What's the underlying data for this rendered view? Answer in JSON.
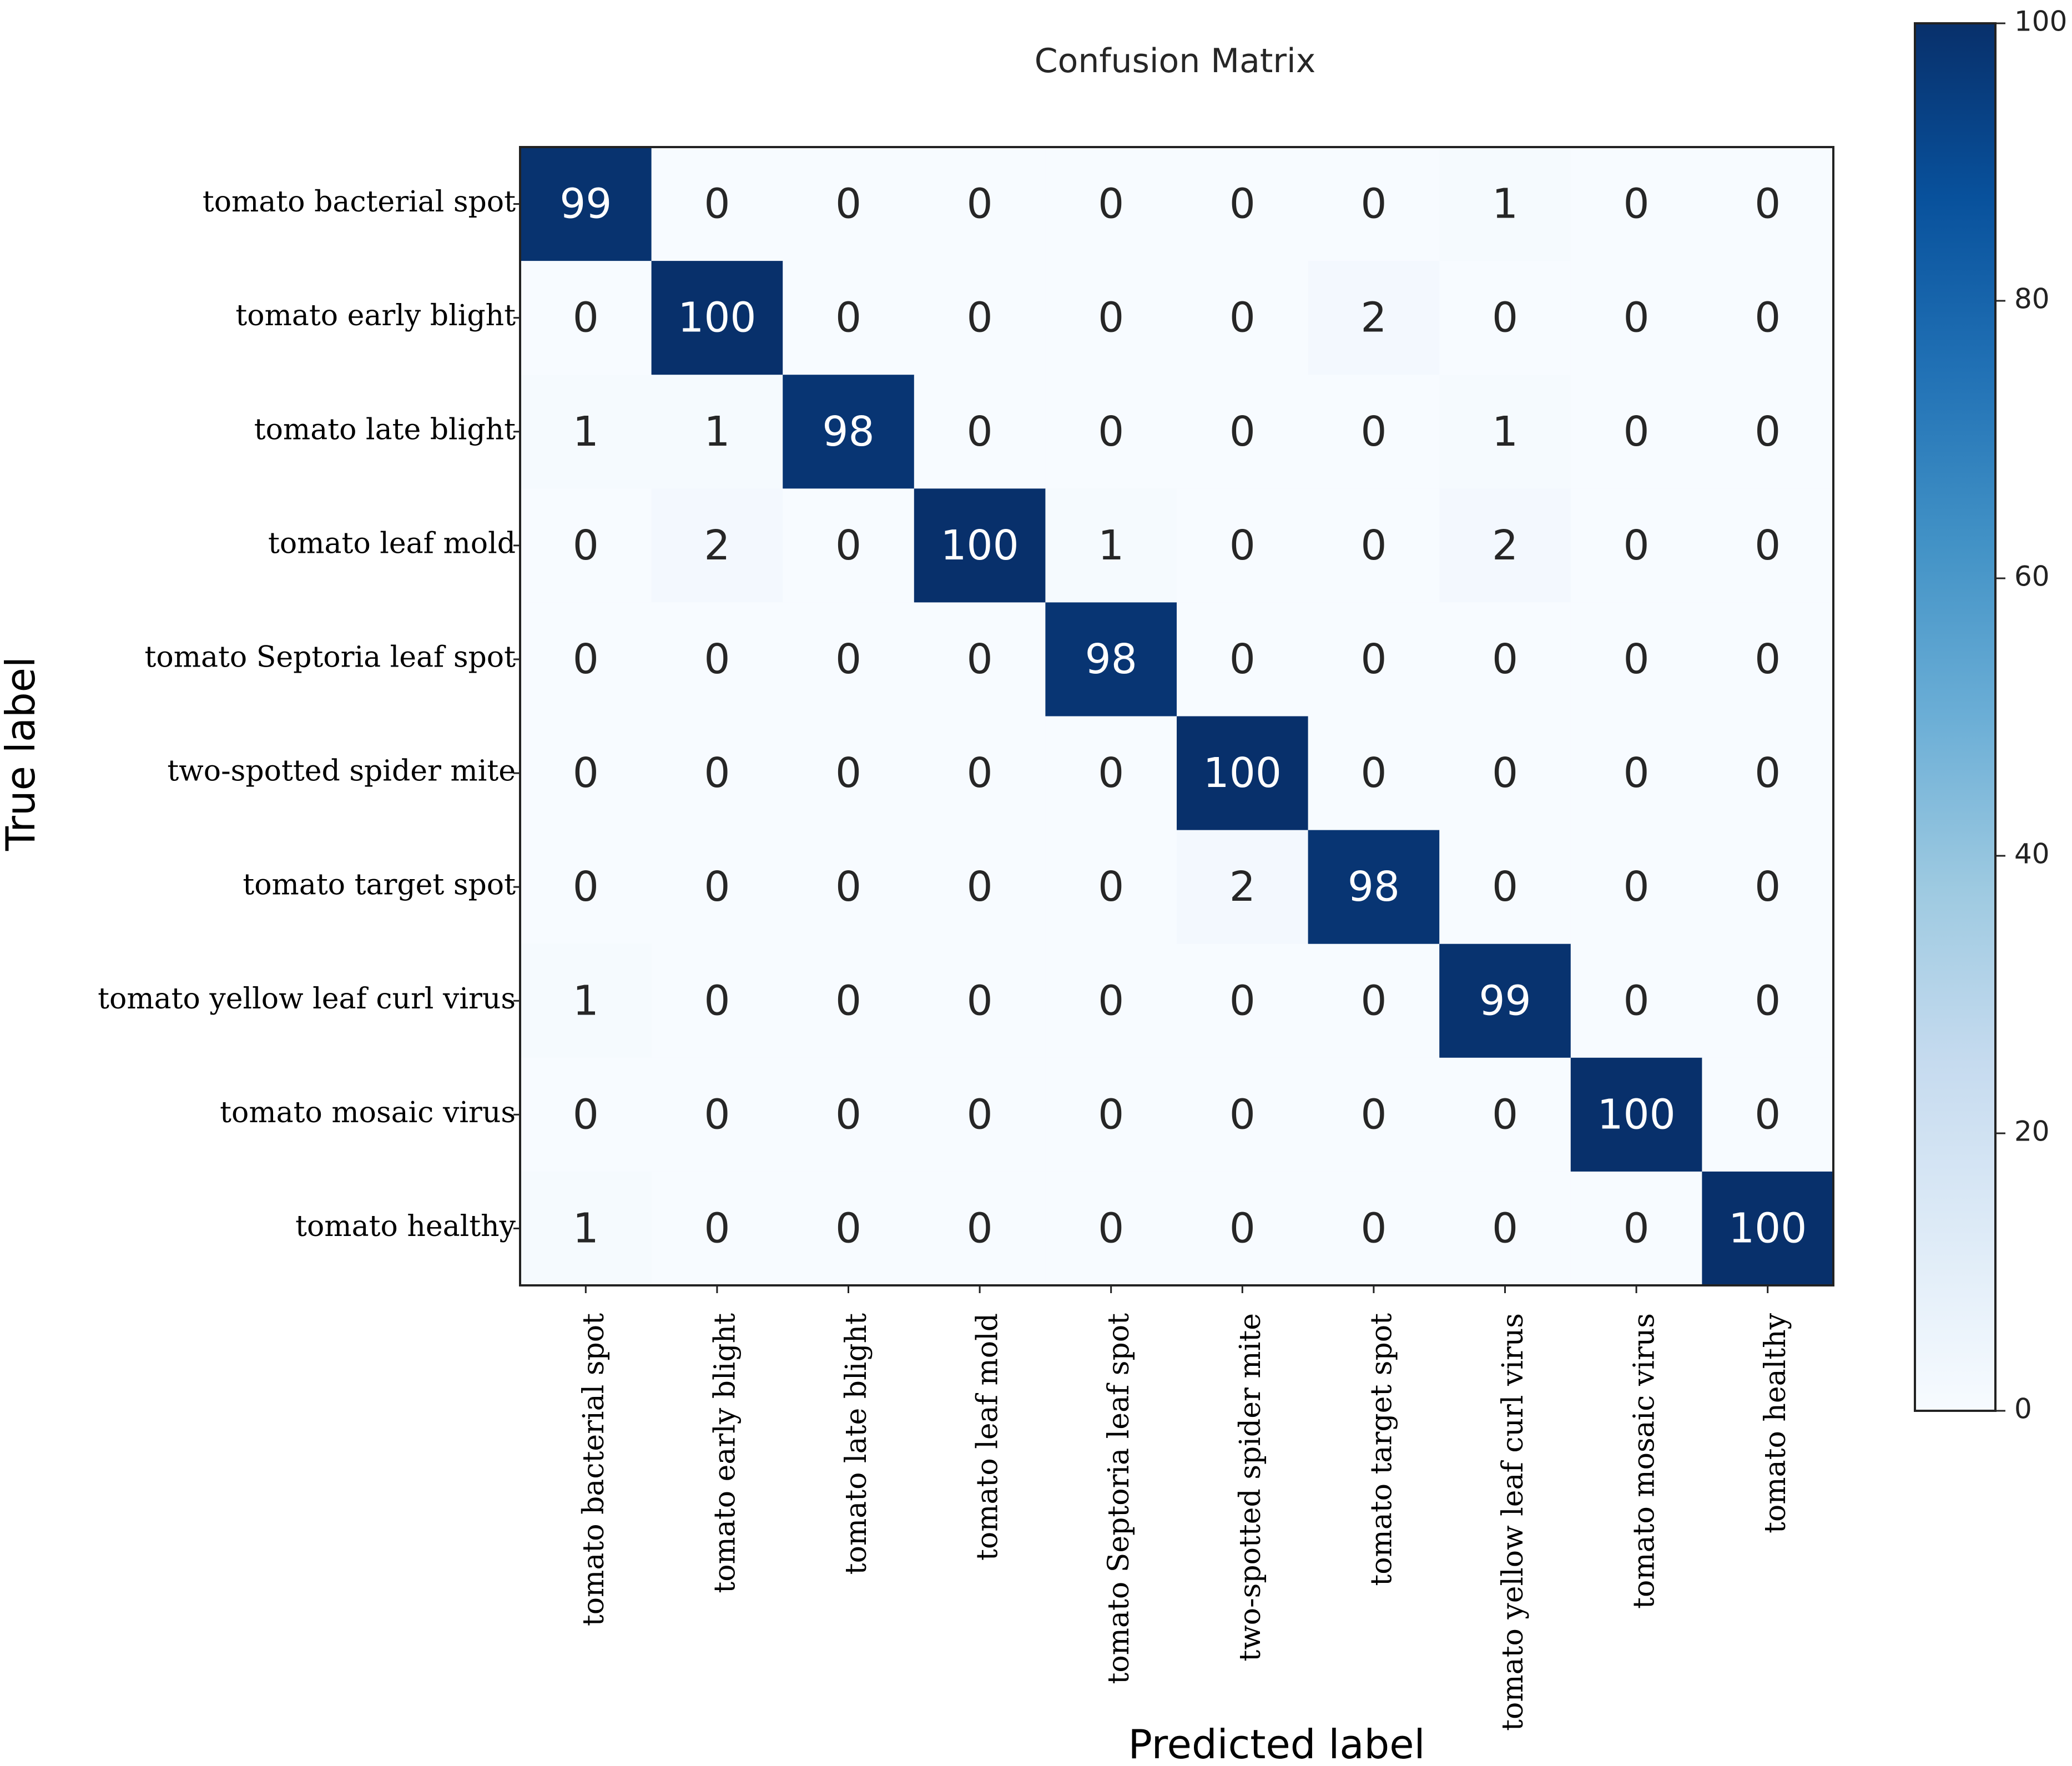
{
  "chart_data": {
    "type": "heatmap",
    "title": "Confusion Matrix",
    "xlabel": "Predicted label",
    "ylabel": "True label",
    "row_labels": [
      "tomato bacterial spot",
      "tomato early blight",
      "tomato late blight",
      "tomato leaf mold",
      "tomato Septoria leaf spot",
      "two-spotted spider mite",
      "tomato target spot",
      "tomato yellow leaf curl virus",
      "tomato mosaic virus",
      "tomato healthy"
    ],
    "col_labels": [
      "tomato bacterial spot",
      "tomato early blight",
      "tomato late blight",
      "tomato leaf mold",
      "tomato Septoria leaf spot",
      "two-spotted spider mite",
      "tomato target spot",
      "tomato yellow leaf curl virus",
      "tomato mosaic virus",
      "tomato healthy"
    ],
    "matrix": [
      [
        99,
        0,
        0,
        0,
        0,
        0,
        0,
        1,
        0,
        0
      ],
      [
        0,
        100,
        0,
        0,
        0,
        0,
        2,
        0,
        0,
        0
      ],
      [
        1,
        1,
        98,
        0,
        0,
        0,
        0,
        1,
        0,
        0
      ],
      [
        0,
        2,
        0,
        100,
        1,
        0,
        0,
        2,
        0,
        0
      ],
      [
        0,
        0,
        0,
        0,
        98,
        0,
        0,
        0,
        0,
        0
      ],
      [
        0,
        0,
        0,
        0,
        0,
        100,
        0,
        0,
        0,
        0
      ],
      [
        0,
        0,
        0,
        0,
        0,
        2,
        98,
        0,
        0,
        0
      ],
      [
        1,
        0,
        0,
        0,
        0,
        0,
        0,
        99,
        0,
        0
      ],
      [
        0,
        0,
        0,
        0,
        0,
        0,
        0,
        0,
        100,
        0
      ],
      [
        1,
        0,
        0,
        0,
        0,
        0,
        0,
        0,
        0,
        100
      ]
    ],
    "colorbar": {
      "min": 0,
      "max": 100,
      "ticks": [
        0,
        20,
        40,
        60,
        80,
        100
      ],
      "colormap": "Blues",
      "colors": [
        "#f7fbff",
        "#deebf7",
        "#c6dbef",
        "#9ecae1",
        "#6baed6",
        "#4292c6",
        "#2171b5",
        "#08519c",
        "#08306b"
      ]
    },
    "text_color_dark": "#262626",
    "text_color_light": "#ffffff",
    "grid": false
  }
}
